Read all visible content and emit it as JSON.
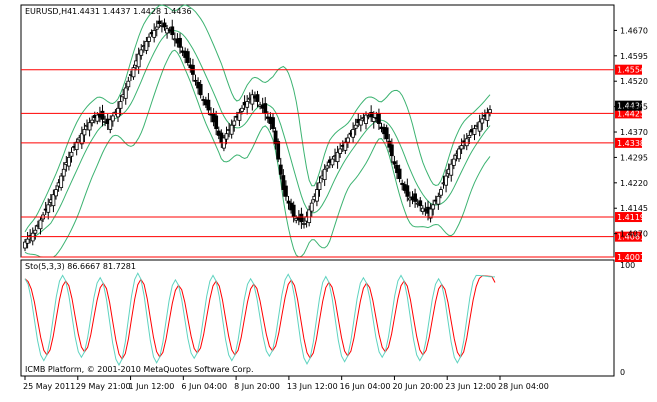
{
  "header": {
    "symbol": "EURUSD,H4",
    "ohlc": "1.4431 1.4437 1.4428 1.4436"
  },
  "subwindow": {
    "label": "Sto(5,3,3) 86.6667 81.7281",
    "credit": "ICMB Platform, © 2001-2010 MetaQuotes Software Corp.",
    "scale_top": "100",
    "scale_bottom": "0"
  },
  "colors": {
    "candle": "#000000",
    "bands": "#3cb371",
    "level": "#ff0000",
    "level_tag_bg": "#ff0000",
    "current_tag_bg": "#000000",
    "stoch_main": "#5fd3c0",
    "stoch_signal": "#ff0000",
    "grid": "#000000"
  },
  "chart_data": [
    {
      "type": "candlestick",
      "title": "EURUSD,H4",
      "ylim": [
        1.4001,
        1.4745
      ],
      "yticks": [
        "1.4670",
        "1.4595",
        "1.4520",
        "1.4445",
        "1.4370",
        "1.4295",
        "1.4220",
        "1.4145",
        "1.4070"
      ],
      "xticks": [
        "25 May 2011",
        "29 May 21:00",
        "1 Jun 12:00",
        "6 Jun 04:00",
        "8 Jun 20:00",
        "13 Jun 12:00",
        "16 Jun 04:00",
        "20 Jun 20:00",
        "23 Jun 12:00",
        "28 Jun 04:00"
      ],
      "current_price": "1.4436",
      "levels": [
        "1.4554",
        "1.4425",
        "1.4338",
        "1.4119",
        "1.4061",
        "1.4001"
      ],
      "close_path": [
        1.4045,
        1.408,
        1.414,
        1.42,
        1.428,
        1.434,
        1.439,
        1.442,
        1.4395,
        1.444,
        1.452,
        1.46,
        1.465,
        1.469,
        1.467,
        1.462,
        1.456,
        1.448,
        1.442,
        1.434,
        1.439,
        1.444,
        1.448,
        1.444,
        1.438,
        1.42,
        1.412,
        1.41,
        1.418,
        1.426,
        1.43,
        1.434,
        1.439,
        1.442,
        1.441,
        1.435,
        1.425,
        1.418,
        1.416,
        1.413,
        1.418,
        1.426,
        1.432,
        1.436,
        1.44,
        1.4436
      ],
      "series": [
        {
          "name": "",
          "role": "upper-band"
        },
        {
          "name": "",
          "role": "middle-band"
        },
        {
          "name": "",
          "role": "lower-band"
        }
      ]
    },
    {
      "type": "line",
      "title": "Sto(5,3,3)",
      "ylim": [
        0,
        100
      ],
      "main": 86.6667,
      "signal": 81.7281,
      "cycle_peaks": [
        85,
        88,
        86,
        90,
        84,
        88,
        85,
        89,
        87,
        86,
        88,
        85,
        88
      ],
      "cycle_troughs": [
        12,
        15,
        8,
        10,
        14,
        12,
        16,
        9,
        11,
        15,
        12,
        10
      ]
    }
  ]
}
